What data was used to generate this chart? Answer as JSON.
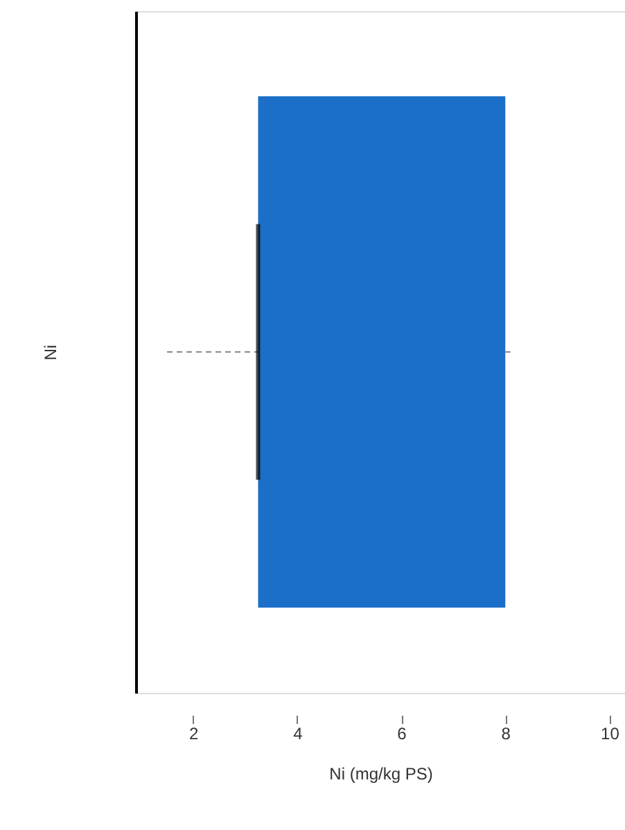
{
  "chart_data": {
    "type": "box",
    "orientation": "horizontal",
    "categories": [
      null
    ],
    "xlabel": "Ni  (mg/kg PS)",
    "ylabel": "Ni",
    "xlim": [
      0.9,
      10.3
    ],
    "xticks": [
      2,
      4,
      6,
      8,
      10
    ],
    "grid": false,
    "series": [
      {
        "color": "#1b6fc8",
        "boxes": [
          {
            "low": 1.5,
            "q1": 3.25,
            "median": 3.25,
            "q3": 8.0,
            "high": 8.1
          }
        ]
      }
    ]
  }
}
